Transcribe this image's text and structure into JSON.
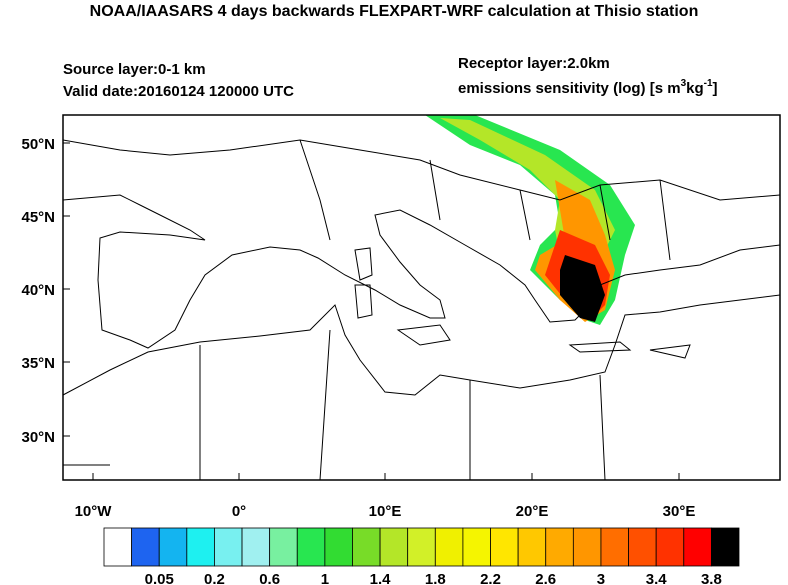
{
  "header": {
    "title": "NOAA/IAASARS 4 days backwards FLEXPART-WRF calculation at Thisio station",
    "source_layer": "Source layer:0-1 km",
    "valid_date": "Valid date:20160124 120000 UTC",
    "receptor_layer": "Receptor layer:2.0km",
    "units": {
      "text": "emissions sensitivity (log) [s m",
      "sup1": "3",
      "mid": "kg",
      "sup2": "-1",
      "end": "]"
    }
  },
  "map": {
    "lat_labels": [
      "50°N",
      "45°N",
      "40°N",
      "35°N",
      "30°N"
    ],
    "lon_labels": [
      "10°W",
      "0°",
      "10°E",
      "20°E",
      "30°E"
    ]
  },
  "colorbar": {
    "colors": [
      "#ffffff",
      "#1e64f0",
      "#14b4f0",
      "#1ef0f0",
      "#78f0f0",
      "#a0f0f0",
      "#78f0a0",
      "#28e650",
      "#32dc32",
      "#78dc28",
      "#b4e628",
      "#d2f028",
      "#f0f000",
      "#f5f500",
      "#ffe600",
      "#ffc800",
      "#ffaa00",
      "#ff9600",
      "#ff6e00",
      "#ff5000",
      "#ff3200",
      "#ff0000",
      "#000000"
    ],
    "labels": [
      "0.05",
      "0.2",
      "0.6",
      "1",
      "1.4",
      "1.8",
      "2.2",
      "2.6",
      "3",
      "3.4",
      "3.8"
    ]
  }
}
